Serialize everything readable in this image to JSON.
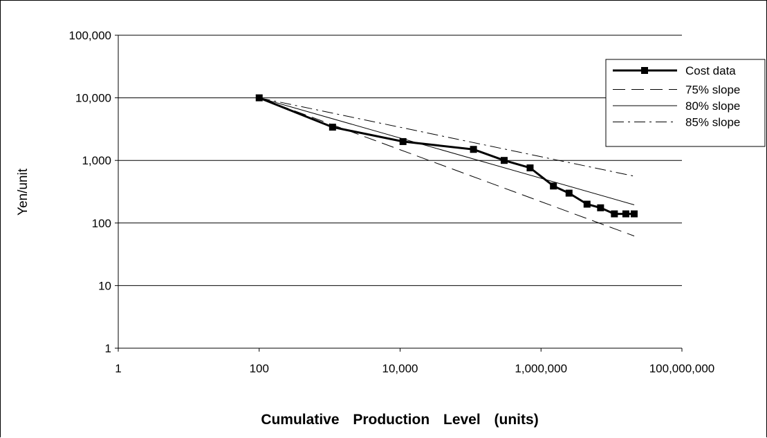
{
  "chart_data": {
    "type": "line",
    "title": "",
    "xlabel": "Cumulative   Production   Level   (units)",
    "ylabel": "Yen/unit",
    "xscale": "log",
    "yscale": "log",
    "xlim": [
      1,
      100000000
    ],
    "ylim": [
      1,
      100000
    ],
    "xticks": [
      1,
      100,
      10000,
      1000000,
      100000000
    ],
    "xtick_labels": [
      "1",
      "100",
      "10,000",
      "1,000,000",
      "100,000,000"
    ],
    "yticks": [
      1,
      10,
      100,
      1000,
      10000,
      100000
    ],
    "ytick_labels": [
      "1",
      "10",
      "100",
      "1,000",
      "10,000",
      "100,000"
    ],
    "grid": "horizontal major gridlines",
    "legend_position": "top-right",
    "series": [
      {
        "name": "Cost data",
        "style": "solid-bold-square-markers",
        "color": "#000000",
        "x": [
          100,
          1100,
          11000,
          110000,
          300000,
          700000,
          1500000,
          2500000,
          4500000,
          7000000,
          11000000,
          16000000,
          21000000
        ],
        "y": [
          10000,
          3400,
          2000,
          1500,
          1000,
          760,
          390,
          300,
          200,
          175,
          140,
          140,
          140
        ]
      },
      {
        "name": "75% slope",
        "style": "dashed",
        "color": "#000000",
        "x": [
          100,
          21000000
        ],
        "y": [
          10000,
          62
        ]
      },
      {
        "name": "80% slope",
        "style": "solid-thin",
        "color": "#000000",
        "x": [
          100,
          21000000
        ],
        "y": [
          10000,
          195
        ]
      },
      {
        "name": "85% slope",
        "style": "dash-dot",
        "color": "#000000",
        "x": [
          100,
          21000000
        ],
        "y": [
          10000,
          560
        ]
      }
    ]
  }
}
